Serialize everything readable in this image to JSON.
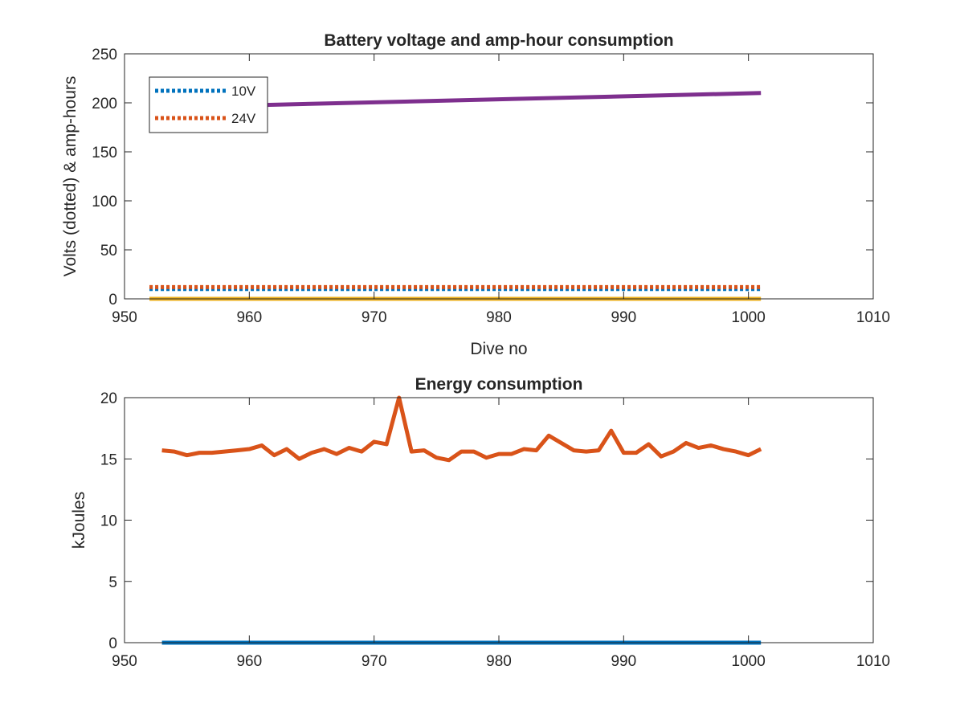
{
  "chart_data": [
    {
      "type": "line",
      "title": "Battery voltage and amp-hour consumption",
      "xlabel": "Dive no",
      "ylabel": "Volts (dotted) & amp-hours",
      "xlim": [
        950,
        1010
      ],
      "ylim": [
        0,
        250
      ],
      "xticks": [
        950,
        960,
        970,
        980,
        990,
        1000,
        1010
      ],
      "yticks": [
        0,
        50,
        100,
        150,
        200,
        250
      ],
      "grid": false,
      "legend_position": "top-left",
      "series": [
        {
          "name": "10V",
          "style": "dotted",
          "color": "#0072BD",
          "x": [
            952,
            1001
          ],
          "y": [
            10,
            10
          ]
        },
        {
          "name": "24V",
          "style": "dotted",
          "color": "#D95319",
          "x": [
            952,
            1001
          ],
          "y": [
            12,
            12
          ]
        },
        {
          "style": "solid",
          "color": "#EDB120",
          "x": [
            952,
            1001
          ],
          "y": [
            0,
            0
          ]
        },
        {
          "style": "solid",
          "color": "#7E2F8E",
          "x": [
            952,
            1001
          ],
          "y": [
            195,
            210
          ]
        }
      ]
    },
    {
      "type": "line",
      "title": "Energy consumption",
      "xlabel": "",
      "ylabel": "kJoules",
      "xlim": [
        950,
        1010
      ],
      "ylim": [
        0,
        20
      ],
      "xticks": [
        950,
        960,
        970,
        980,
        990,
        1000,
        1010
      ],
      "yticks": [
        0,
        5,
        10,
        15,
        20
      ],
      "grid": false,
      "series": [
        {
          "style": "solid",
          "color": "#0072BD",
          "x": [
            953,
            1001
          ],
          "y": [
            0,
            0
          ]
        },
        {
          "style": "solid",
          "color": "#D95319",
          "x": [
            953,
            954,
            955,
            956,
            957,
            958,
            959,
            960,
            961,
            962,
            963,
            964,
            965,
            966,
            967,
            968,
            969,
            970,
            971,
            972,
            973,
            974,
            975,
            976,
            977,
            978,
            979,
            980,
            981,
            982,
            983,
            984,
            985,
            986,
            987,
            988,
            989,
            990,
            991,
            992,
            993,
            994,
            995,
            996,
            997,
            998,
            999,
            1000,
            1001
          ],
          "y": [
            15.7,
            15.6,
            15.3,
            15.5,
            15.5,
            15.6,
            15.7,
            15.8,
            16.1,
            15.3,
            15.8,
            15.0,
            15.5,
            15.8,
            15.4,
            15.9,
            15.6,
            16.4,
            16.2,
            20.0,
            15.6,
            15.7,
            15.1,
            14.9,
            15.6,
            15.6,
            15.1,
            15.4,
            15.4,
            15.8,
            15.7,
            16.9,
            16.3,
            15.7,
            15.6,
            15.7,
            17.3,
            15.5,
            15.5,
            16.2,
            15.2,
            15.6,
            16.3,
            15.9,
            16.1,
            15.8,
            15.6,
            15.3,
            15.8
          ]
        }
      ]
    }
  ]
}
